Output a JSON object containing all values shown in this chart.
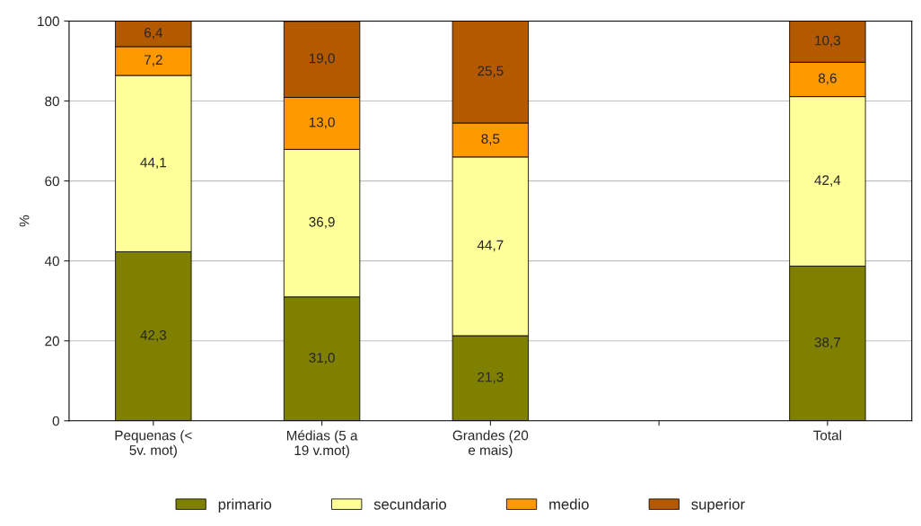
{
  "chart_data": {
    "type": "bar",
    "stacked": true,
    "ylabel": "%",
    "categories": [
      "Pequenas (<\n5v. mot)",
      "Médias (5 a\n19 v.mot)",
      "Grandes (20\ne mais)",
      null,
      "Total"
    ],
    "series": [
      {
        "name": "primario",
        "color": "#808000",
        "values": [
          42.3,
          31.0,
          21.3,
          null,
          38.7
        ],
        "value_labels": [
          "42,3",
          "31,0",
          "21,3",
          null,
          "38,7"
        ]
      },
      {
        "name": "secundario",
        "color": "#ffff99",
        "values": [
          44.1,
          36.9,
          44.7,
          null,
          42.4
        ],
        "value_labels": [
          "44,1",
          "36,9",
          "44,7",
          null,
          "42,4"
        ]
      },
      {
        "name": "medio",
        "color": "#ff9900",
        "values": [
          7.2,
          13.0,
          8.5,
          null,
          8.6
        ],
        "value_labels": [
          "7,2",
          "13,0",
          "8,5",
          null,
          "8,6"
        ]
      },
      {
        "name": "superior",
        "color": "#b35900",
        "values": [
          6.4,
          19.0,
          25.5,
          null,
          10.3
        ],
        "value_labels": [
          "6,4",
          "19,0",
          "25,5",
          null,
          "10,3"
        ]
      }
    ],
    "ylim": [
      0,
      100
    ],
    "yticks": [
      0,
      20,
      40,
      60,
      80,
      100
    ],
    "grid": "y",
    "legend": "bottom"
  }
}
